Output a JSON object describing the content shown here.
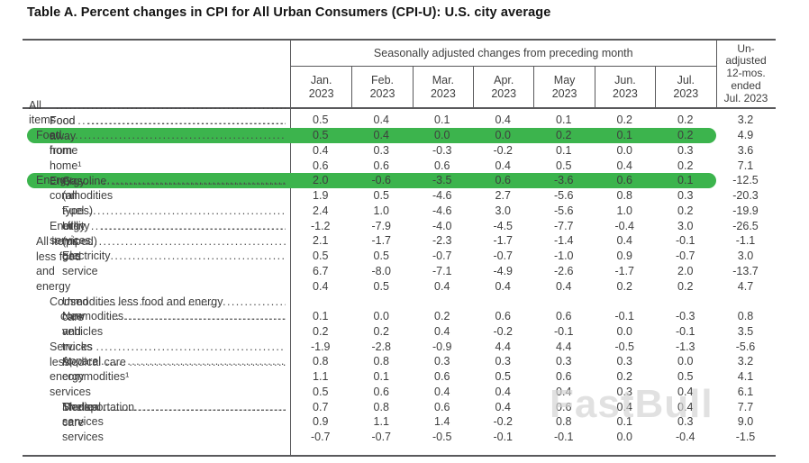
{
  "page": {
    "title": "Table A. Percent changes in CPI for All Urban Consumers (CPI-U): U.S. city average",
    "watermark": "FastBull"
  },
  "chart_data": {
    "type": "table",
    "title": "Table A. Percent changes in CPI for All Urban Consumers (CPI-U): U.S. city average",
    "column_group_header": "Seasonally adjusted changes from preceding month",
    "month_header_lines": [
      [
        "Jan.",
        "2023"
      ],
      [
        "Feb.",
        "2023"
      ],
      [
        "Mar.",
        "2023"
      ],
      [
        "Apr.",
        "2023"
      ],
      [
        "May",
        "2023"
      ],
      [
        "Jun.",
        "2023"
      ],
      [
        "Jul.",
        "2023"
      ]
    ],
    "unadjusted_header_lines": [
      "Un-",
      "adjusted",
      "12-mos.",
      "ended",
      "Jul. 2023"
    ],
    "columns": [
      "Jan. 2023",
      "Feb. 2023",
      "Mar. 2023",
      "Apr. 2023",
      "May 2023",
      "Jun. 2023",
      "Jul. 2023",
      "Unadjusted 12-mos. ended Jul. 2023"
    ],
    "highlight_color": "#3cb44d",
    "rows": [
      {
        "label": "All items",
        "indent": 0,
        "highlighted": false,
        "values": [
          "0.5",
          "0.4",
          "0.1",
          "0.4",
          "0.1",
          "0.2",
          "0.2"
        ],
        "unadjusted_12mo": "3.2"
      },
      {
        "label": "Food",
        "indent": 1,
        "highlighted": true,
        "values": [
          "0.5",
          "0.4",
          "0.0",
          "0.0",
          "0.2",
          "0.1",
          "0.2"
        ],
        "unadjusted_12mo": "4.9"
      },
      {
        "label": "Food at home",
        "indent": 2,
        "highlighted": false,
        "values": [
          "0.4",
          "0.3",
          "-0.3",
          "-0.2",
          "0.1",
          "0.0",
          "0.3"
        ],
        "unadjusted_12mo": "3.6"
      },
      {
        "label": "Food away from home¹",
        "indent": 2,
        "highlighted": false,
        "values": [
          "0.6",
          "0.6",
          "0.6",
          "0.4",
          "0.5",
          "0.4",
          "0.2"
        ],
        "unadjusted_12mo": "7.1"
      },
      {
        "label": "Energy",
        "indent": 1,
        "highlighted": true,
        "values": [
          "2.0",
          "-0.6",
          "-3.5",
          "0.6",
          "-3.6",
          "0.6",
          "0.1"
        ],
        "unadjusted_12mo": "-12.5"
      },
      {
        "label": "Energy commodities",
        "indent": 2,
        "highlighted": false,
        "values": [
          "1.9",
          "0.5",
          "-4.6",
          "2.7",
          "-5.6",
          "0.8",
          "0.3"
        ],
        "unadjusted_12mo": "-20.3"
      },
      {
        "label": "Gasoline (all types)",
        "indent": 3,
        "highlighted": false,
        "values": [
          "2.4",
          "1.0",
          "-4.6",
          "3.0",
          "-5.6",
          "1.0",
          "0.2"
        ],
        "unadjusted_12mo": "-19.9"
      },
      {
        "label": "Fuel oil¹",
        "indent": 3,
        "highlighted": false,
        "values": [
          "-1.2",
          "-7.9",
          "-4.0",
          "-4.5",
          "-7.7",
          "-0.4",
          "3.0"
        ],
        "unadjusted_12mo": "-26.5"
      },
      {
        "label": "Energy services",
        "indent": 2,
        "highlighted": false,
        "values": [
          "2.1",
          "-1.7",
          "-2.3",
          "-1.7",
          "-1.4",
          "0.4",
          "-0.1"
        ],
        "unadjusted_12mo": "-1.1"
      },
      {
        "label": "Electricity",
        "indent": 3,
        "highlighted": false,
        "values": [
          "0.5",
          "0.5",
          "-0.7",
          "-0.7",
          "-1.0",
          "0.9",
          "-0.7"
        ],
        "unadjusted_12mo": "3.0"
      },
      {
        "label": "Utility (piped) gas service",
        "indent": 3,
        "highlighted": false,
        "values": [
          "6.7",
          "-8.0",
          "-7.1",
          "-4.9",
          "-2.6",
          "-1.7",
          "2.0"
        ],
        "unadjusted_12mo": "-13.7"
      },
      {
        "label": "All items less food and energy",
        "indent": 1,
        "highlighted": false,
        "values": [
          "0.4",
          "0.5",
          "0.4",
          "0.4",
          "0.4",
          "0.2",
          "0.2"
        ],
        "unadjusted_12mo": "4.7"
      },
      {
        "label": "Commodities less food and energy commodities",
        "label_line1": "Commodities less food and energy",
        "label_line2": "commodities",
        "indent": 2,
        "highlighted": false,
        "values": [
          "0.1",
          "0.0",
          "0.2",
          "0.6",
          "0.6",
          "-0.1",
          "-0.3"
        ],
        "unadjusted_12mo": "0.8"
      },
      {
        "label": "New vehicles",
        "indent": 3,
        "highlighted": false,
        "values": [
          "0.2",
          "0.2",
          "0.4",
          "-0.2",
          "-0.1",
          "0.0",
          "-0.1"
        ],
        "unadjusted_12mo": "3.5"
      },
      {
        "label": "Used cars and trucks",
        "indent": 3,
        "highlighted": false,
        "values": [
          "-1.9",
          "-2.8",
          "-0.9",
          "4.4",
          "4.4",
          "-0.5",
          "-1.3"
        ],
        "unadjusted_12mo": "-5.6"
      },
      {
        "label": "Apparel",
        "indent": 3,
        "highlighted": false,
        "values": [
          "0.8",
          "0.8",
          "0.3",
          "0.3",
          "0.3",
          "0.3",
          "0.0"
        ],
        "unadjusted_12mo": "3.2"
      },
      {
        "label": "Medical care commodities¹",
        "indent": 3,
        "highlighted": false,
        "values": [
          "1.1",
          "0.1",
          "0.6",
          "0.5",
          "0.6",
          "0.2",
          "0.5"
        ],
        "unadjusted_12mo": "4.1"
      },
      {
        "label": "Services less energy services",
        "indent": 2,
        "highlighted": false,
        "values": [
          "0.5",
          "0.6",
          "0.4",
          "0.4",
          "0.4",
          "0.3",
          "0.4"
        ],
        "unadjusted_12mo": "6.1"
      },
      {
        "label": "Shelter",
        "indent": 3,
        "highlighted": false,
        "values": [
          "0.7",
          "0.8",
          "0.6",
          "0.4",
          "0.6",
          "0.4",
          "0.4"
        ],
        "unadjusted_12mo": "7.7"
      },
      {
        "label": "Transportation services",
        "indent": 3,
        "highlighted": false,
        "values": [
          "0.9",
          "1.1",
          "1.4",
          "-0.2",
          "0.8",
          "0.1",
          "0.3"
        ],
        "unadjusted_12mo": "9.0"
      },
      {
        "label": "Medical care services",
        "indent": 3,
        "highlighted": false,
        "values": [
          "-0.7",
          "-0.7",
          "-0.5",
          "-0.1",
          "-0.1",
          "0.0",
          "-0.4"
        ],
        "unadjusted_12mo": "-1.5"
      }
    ]
  }
}
